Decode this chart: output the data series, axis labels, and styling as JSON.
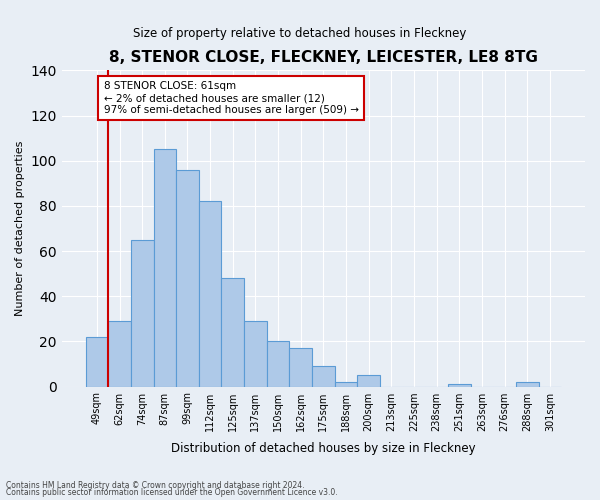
{
  "title": "8, STENOR CLOSE, FLECKNEY, LEICESTER, LE8 8TG",
  "subtitle": "Size of property relative to detached houses in Fleckney",
  "xlabel": "Distribution of detached houses by size in Fleckney",
  "ylabel": "Number of detached properties",
  "bar_labels": [
    "49sqm",
    "62sqm",
    "74sqm",
    "87sqm",
    "99sqm",
    "112sqm",
    "125sqm",
    "137sqm",
    "150sqm",
    "162sqm",
    "175sqm",
    "188sqm",
    "200sqm",
    "213sqm",
    "225sqm",
    "238sqm",
    "251sqm",
    "263sqm",
    "276sqm",
    "288sqm",
    "301sqm"
  ],
  "bar_values": [
    22,
    29,
    65,
    105,
    96,
    82,
    48,
    29,
    20,
    17,
    9,
    2,
    5,
    0,
    0,
    0,
    1,
    0,
    0,
    2,
    0
  ],
  "bar_color": "#aec9e8",
  "bar_edge_color": "#5b9bd5",
  "ylim": [
    0,
    140
  ],
  "yticks": [
    0,
    20,
    40,
    60,
    80,
    100,
    120,
    140
  ],
  "annotation_text": "8 STENOR CLOSE: 61sqm\n← 2% of detached houses are smaller (12)\n97% of semi-detached houses are larger (509) →",
  "annotation_box_color": "#ffffff",
  "annotation_border_color": "#cc0000",
  "vline_color": "#cc0000",
  "footnote1": "Contains HM Land Registry data © Crown copyright and database right 2024.",
  "footnote2": "Contains public sector information licensed under the Open Government Licence v3.0.",
  "background_color": "#e8eef5",
  "plot_bg_color": "#e8eef5"
}
